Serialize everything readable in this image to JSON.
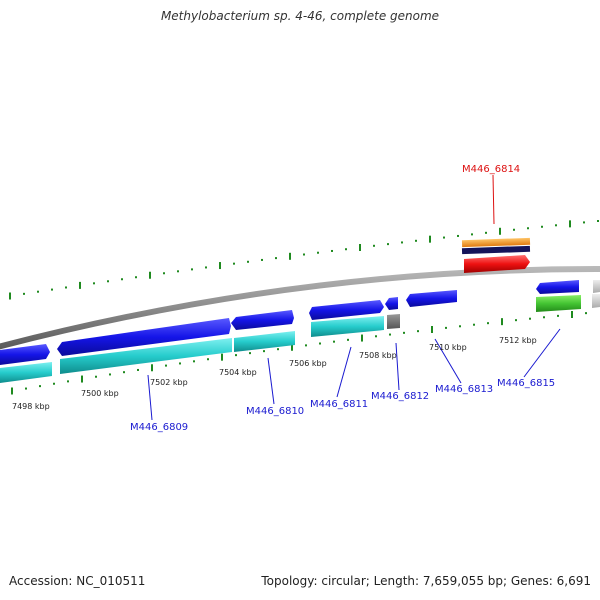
{
  "title": "Methylobacterium sp. 4-46, complete genome",
  "footer": {
    "accession": "Accession: NC_010511",
    "summary": "Topology: circular; Length: 7,659,055 bp; Genes: 6,691"
  },
  "colors": {
    "backbone": "#888888",
    "tick": "#1f8a1f",
    "label_default": "#1a1ad0",
    "label_highlight": "#dd1111"
  },
  "tick_labels": [
    {
      "text": "7498 kbp"
    },
    {
      "text": "7500 kbp"
    },
    {
      "text": "7502 kbp"
    },
    {
      "text": "7504 kbp"
    },
    {
      "text": "7506 kbp"
    },
    {
      "text": "7508 kbp"
    },
    {
      "text": "7510 kbp"
    },
    {
      "text": "7512 kbp"
    }
  ],
  "gene_labels": [
    {
      "text": "M446_6809",
      "highlight": false
    },
    {
      "text": "M446_6810",
      "highlight": false
    },
    {
      "text": "M446_6811",
      "highlight": false
    },
    {
      "text": "M446_6812",
      "highlight": false
    },
    {
      "text": "M446_6813",
      "highlight": false
    },
    {
      "text": "M446_6814",
      "highlight": true
    },
    {
      "text": "M446_6815",
      "highlight": false
    }
  ]
}
